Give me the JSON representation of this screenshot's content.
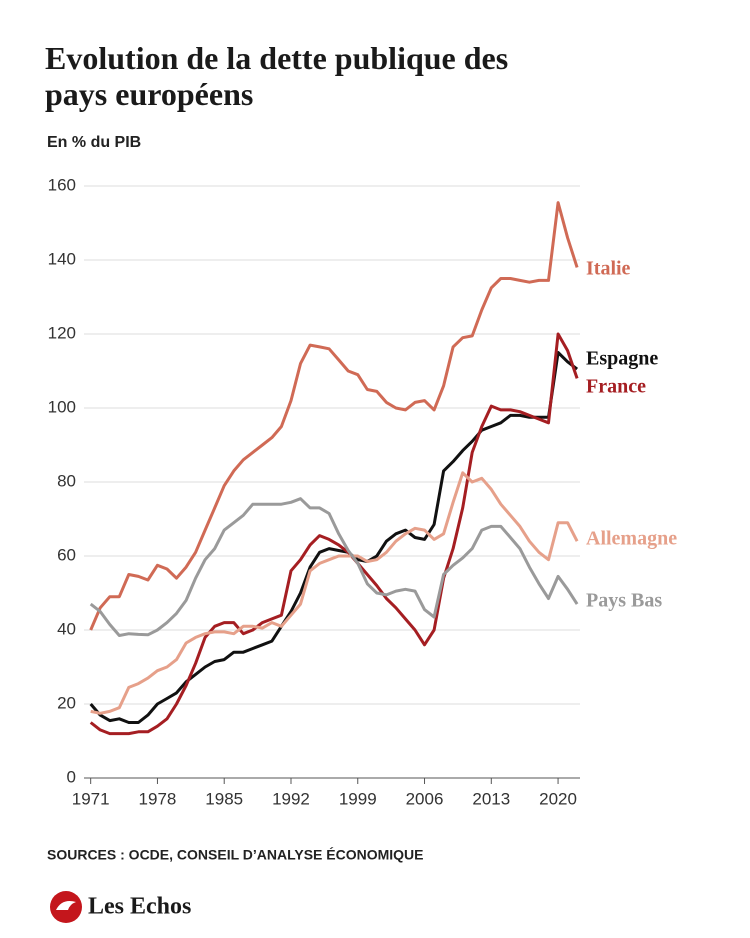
{
  "chart_data": {
    "type": "line",
    "title": "Evolution de la dette publique des pays européens",
    "subtitle": "En % du PIB",
    "source": "SOURCES : OCDE, CONSEIL D’ANALYSE ÉCONOMIQUE",
    "brand": "Les Echos",
    "x": [
      1971,
      1972,
      1973,
      1974,
      1975,
      1976,
      1977,
      1978,
      1979,
      1980,
      1981,
      1982,
      1983,
      1984,
      1985,
      1986,
      1987,
      1988,
      1989,
      1990,
      1991,
      1992,
      1993,
      1994,
      1995,
      1996,
      1997,
      1998,
      1999,
      2000,
      2001,
      2002,
      2003,
      2004,
      2005,
      2006,
      2007,
      2008,
      2009,
      2010,
      2011,
      2012,
      2013,
      2014,
      2015,
      2016,
      2017,
      2018,
      2019,
      2020,
      2021,
      2022
    ],
    "series": [
      {
        "name": "Italie",
        "color": "#d06a55",
        "values": [
          40,
          46,
          49,
          49,
          55,
          54.5,
          53.5,
          57.5,
          56.5,
          54,
          57,
          61,
          67,
          73,
          79,
          83,
          86,
          88,
          90,
          92,
          95,
          102,
          112,
          117,
          116.5,
          116,
          113,
          110,
          109,
          105,
          104.5,
          101.5,
          100,
          99.5,
          101.5,
          102,
          99.5,
          106,
          116.5,
          119,
          119.5,
          126.5,
          132.5,
          135,
          135,
          134.5,
          134,
          134.5,
          134.5,
          155.5,
          146,
          138
        ]
      },
      {
        "name": "Espagne",
        "color": "#111111",
        "values": [
          20,
          17,
          15.5,
          16,
          15,
          15,
          17,
          20,
          21.5,
          23,
          26,
          28,
          30,
          31.5,
          32,
          34,
          34,
          35,
          36,
          37,
          41,
          45,
          50,
          57,
          61,
          62,
          61.5,
          61,
          59,
          58.5,
          60,
          64,
          66,
          67,
          65,
          64.5,
          68.5,
          83,
          85.5,
          88.5,
          91,
          94,
          95,
          96,
          98,
          98,
          97.5,
          97.5,
          97.5,
          115,
          112.5,
          110.5
        ]
      },
      {
        "name": "France",
        "color": "#a51e22",
        "values": [
          15,
          13,
          12,
          12,
          12,
          12.5,
          12.5,
          14,
          16,
          20,
          25,
          31,
          38,
          41,
          42,
          42,
          39,
          40,
          42,
          43,
          44,
          56,
          59,
          63,
          65.5,
          64.5,
          63,
          61,
          58,
          55,
          52,
          48.5,
          46,
          43,
          40,
          36,
          40,
          54,
          62,
          73,
          88,
          95,
          100.5,
          99.5,
          99.5,
          99,
          98,
          97,
          96,
          120,
          115.5,
          108
        ]
      },
      {
        "name": "Allemagne",
        "color": "#e6a08a",
        "values": [
          18,
          17.5,
          18,
          19,
          24.5,
          25.5,
          27,
          29,
          30,
          32,
          36.5,
          38,
          39,
          39.5,
          39.5,
          39,
          41,
          41,
          40.5,
          42,
          41,
          44,
          47,
          56,
          58,
          59,
          60,
          60,
          60,
          58.5,
          59,
          61,
          64,
          66,
          67.5,
          67,
          64.5,
          66,
          74.5,
          82.5,
          80,
          81,
          78,
          74,
          71,
          68,
          64,
          61,
          59,
          69,
          69,
          64
        ]
      },
      {
        "name": "Pays Bas",
        "color": "#9a9a9a",
        "values": [
          47,
          45,
          41.5,
          38.5,
          39,
          38.8,
          38.7,
          40,
          42,
          44.5,
          48,
          54,
          59,
          62,
          67,
          69,
          71,
          74,
          74,
          74,
          74,
          74.5,
          75.5,
          73,
          73,
          71.5,
          66,
          61.5,
          58,
          52.5,
          50,
          49.5,
          50.5,
          51,
          50.5,
          45.5,
          43.5,
          55,
          57.5,
          59.5,
          62,
          67,
          68,
          68,
          65,
          62,
          57,
          52.5,
          48.5,
          54.5,
          51,
          47
        ]
      }
    ],
    "xlim": [
      1970.3,
      2022.3
    ],
    "xticks": [
      1971,
      1978,
      1985,
      1992,
      1999,
      2006,
      2013,
      2020
    ],
    "ylim": [
      0,
      160
    ],
    "yticks": [
      0,
      20,
      40,
      60,
      80,
      100,
      120,
      140,
      160
    ],
    "grid": true
  }
}
